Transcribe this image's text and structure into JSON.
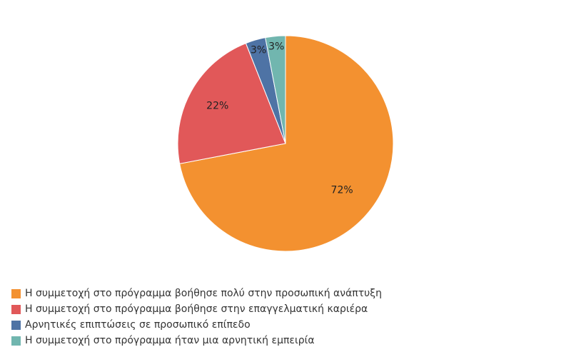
{
  "chart_data": {
    "type": "pie",
    "title": "",
    "categories": [
      "Η συμμετοχή στο πρόγραμμα βοήθησε πολύ στην προσωπική ανάπτυξη",
      "Η συμμετοχή στο πρόγραμμα βοήθησε στην επαγγελματική καριέρα",
      "Αρνητικές επιπτώσεις σε προσωπικό επίπεδο",
      "Η συμμετοχή στο πρόγραμμα ήταν μια αρνητική εμπειρία"
    ],
    "values": [
      72,
      22,
      3,
      3
    ],
    "labels": [
      "72%",
      "22%",
      "3%",
      "3%"
    ],
    "colors": [
      "#F39130",
      "#E15859",
      "#4E73A5",
      "#71B6AF"
    ],
    "legend_position": "bottom-left"
  }
}
